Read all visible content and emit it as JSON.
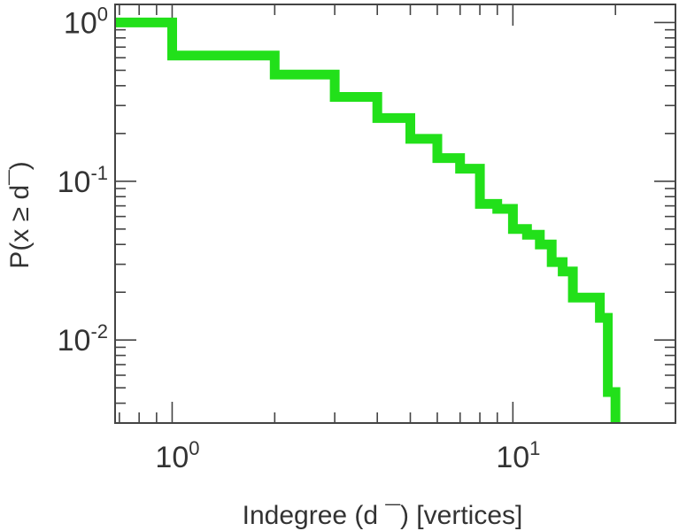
{
  "chart_data": {
    "type": "line",
    "step": true,
    "xscale": "log",
    "yscale": "log",
    "xlim": [
      0.68,
      30
    ],
    "ylim": [
      0.003,
      1.3
    ],
    "xlabel": "Indegree (d  ¯) [vertices]",
    "ylabel": "P(x ≥ d¯)",
    "x_ticks": [
      {
        "value": 1,
        "base": "10",
        "exp": "0"
      },
      {
        "value": 10,
        "base": "10",
        "exp": "1"
      }
    ],
    "y_ticks": [
      {
        "value": 1,
        "base": "10",
        "exp": "0"
      },
      {
        "value": 0.1,
        "base": "10",
        "exp": "-1"
      },
      {
        "value": 0.01,
        "base": "10",
        "exp": "-2"
      }
    ],
    "grid": false,
    "legend": "none",
    "series": [
      {
        "color": "#22e01a",
        "points": [
          [
            0.68,
            1.0
          ],
          [
            1,
            1.0
          ],
          [
            1,
            0.62
          ],
          [
            2,
            0.62
          ],
          [
            2,
            0.47
          ],
          [
            3,
            0.47
          ],
          [
            3,
            0.34
          ],
          [
            4,
            0.34
          ],
          [
            4,
            0.25
          ],
          [
            5,
            0.25
          ],
          [
            5,
            0.185
          ],
          [
            6,
            0.185
          ],
          [
            6,
            0.14
          ],
          [
            7,
            0.14
          ],
          [
            7,
            0.12
          ],
          [
            8,
            0.12
          ],
          [
            8,
            0.072
          ],
          [
            9,
            0.072
          ],
          [
            9,
            0.067
          ],
          [
            10,
            0.067
          ],
          [
            10,
            0.05
          ],
          [
            11,
            0.05
          ],
          [
            11,
            0.046
          ],
          [
            12,
            0.046
          ],
          [
            12,
            0.04
          ],
          [
            13,
            0.04
          ],
          [
            13,
            0.031
          ],
          [
            14,
            0.031
          ],
          [
            14,
            0.027
          ],
          [
            15,
            0.027
          ],
          [
            15,
            0.0185
          ],
          [
            18,
            0.0185
          ],
          [
            18,
            0.0138
          ],
          [
            19,
            0.0138
          ],
          [
            19,
            0.0047
          ],
          [
            20,
            0.0047
          ],
          [
            20,
            0.003
          ]
        ]
      }
    ]
  }
}
